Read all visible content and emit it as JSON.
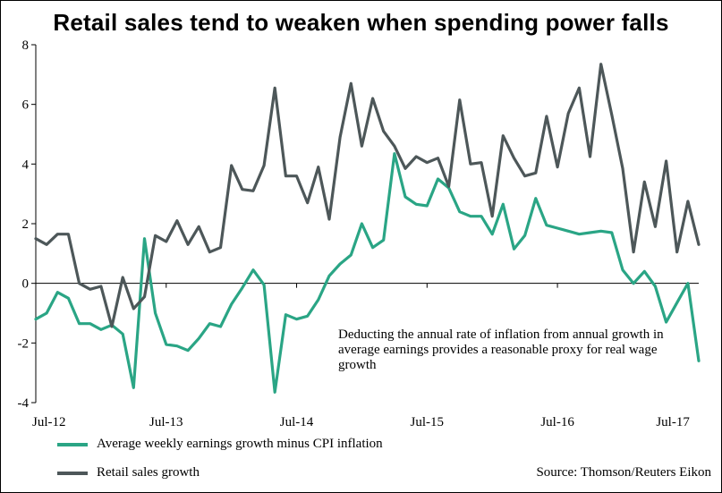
{
  "colors": {
    "green": "#2aa585",
    "grey": "#4d5759",
    "axis": "#000000"
  },
  "chart_data": {
    "type": "line",
    "title": "Retail sales tend to weaken when spending power falls",
    "x_tick_labels": [
      "Jul-12",
      "Jul-13",
      "Jul-14",
      "Jul-15",
      "Jul-16",
      "Jul-17"
    ],
    "x_tick_index": [
      0,
      12,
      24,
      36,
      48,
      60
    ],
    "ylim": [
      -4,
      8
    ],
    "y_ticks": [
      -4,
      -2,
      0,
      2,
      4,
      6,
      8
    ],
    "y_tick_labels": [
      "-4",
      "-2",
      "0",
      "2",
      "4",
      "6",
      "8"
    ],
    "annotation": "Deducting the annual rate of inflation from annual growth in average earnings provides a reasonable proxy for real wage growth",
    "source": "Source: Thomson/Reuters Eikon",
    "series": [
      {
        "name": "Average weekly earnings growth minus CPI inflation",
        "color": "#2aa585",
        "values": [
          -1.2,
          -1.0,
          -0.3,
          -0.5,
          -1.35,
          -1.35,
          -1.55,
          -1.4,
          -1.7,
          -3.5,
          1.5,
          -1.0,
          -2.05,
          -2.1,
          -2.25,
          -1.85,
          -1.35,
          -1.45,
          -0.7,
          -0.15,
          0.45,
          -0.05,
          -3.65,
          -1.05,
          -1.2,
          -1.1,
          -0.55,
          0.25,
          0.65,
          0.95,
          2.0,
          1.2,
          1.45,
          4.35,
          2.9,
          2.65,
          2.6,
          3.5,
          3.2,
          2.4,
          2.25,
          2.25,
          1.65,
          2.65,
          1.15,
          1.6,
          2.85,
          1.95,
          1.85,
          1.75,
          1.65,
          1.7,
          1.75,
          1.7,
          0.45,
          0.0,
          0.4,
          -0.1,
          -1.3,
          -0.65,
          0.0,
          -2.6
        ]
      },
      {
        "name": "Retail sales growth",
        "color": "#4d5759",
        "values": [
          1.5,
          1.3,
          1.65,
          1.65,
          0.0,
          -0.2,
          -0.1,
          -1.45,
          0.2,
          -0.85,
          -0.45,
          1.6,
          1.4,
          2.1,
          1.3,
          1.9,
          1.05,
          1.2,
          3.95,
          3.15,
          3.1,
          3.95,
          6.55,
          3.6,
          3.6,
          2.7,
          3.9,
          2.15,
          4.9,
          6.7,
          4.6,
          6.2,
          5.1,
          4.6,
          3.85,
          4.25,
          4.05,
          4.2,
          3.25,
          6.15,
          4.0,
          4.05,
          2.25,
          4.95,
          4.2,
          3.6,
          3.7,
          5.6,
          3.9,
          5.7,
          6.55,
          4.25,
          7.35,
          5.65,
          3.85,
          1.05,
          3.4,
          1.9,
          4.1,
          1.05,
          2.75,
          1.3
        ]
      }
    ]
  }
}
